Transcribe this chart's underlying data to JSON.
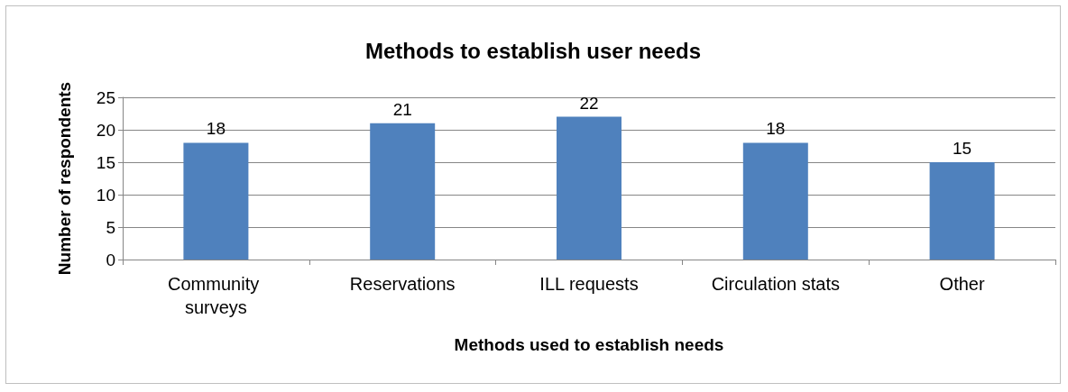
{
  "chart_data": {
    "type": "bar",
    "title": "Methods to establish user needs",
    "xlabel": "Methods used to establish needs",
    "ylabel": "Number of respondents",
    "categories": [
      "Community surveys",
      "Reservations",
      "ILL requests",
      "Circulation stats",
      "Other"
    ],
    "values": [
      18,
      21,
      22,
      18,
      15
    ],
    "color": "#4f81bd",
    "ylim": [
      0,
      25
    ],
    "yticks": [
      0,
      5,
      10,
      15,
      20,
      25
    ],
    "grid": "y",
    "data_labels": true
  }
}
